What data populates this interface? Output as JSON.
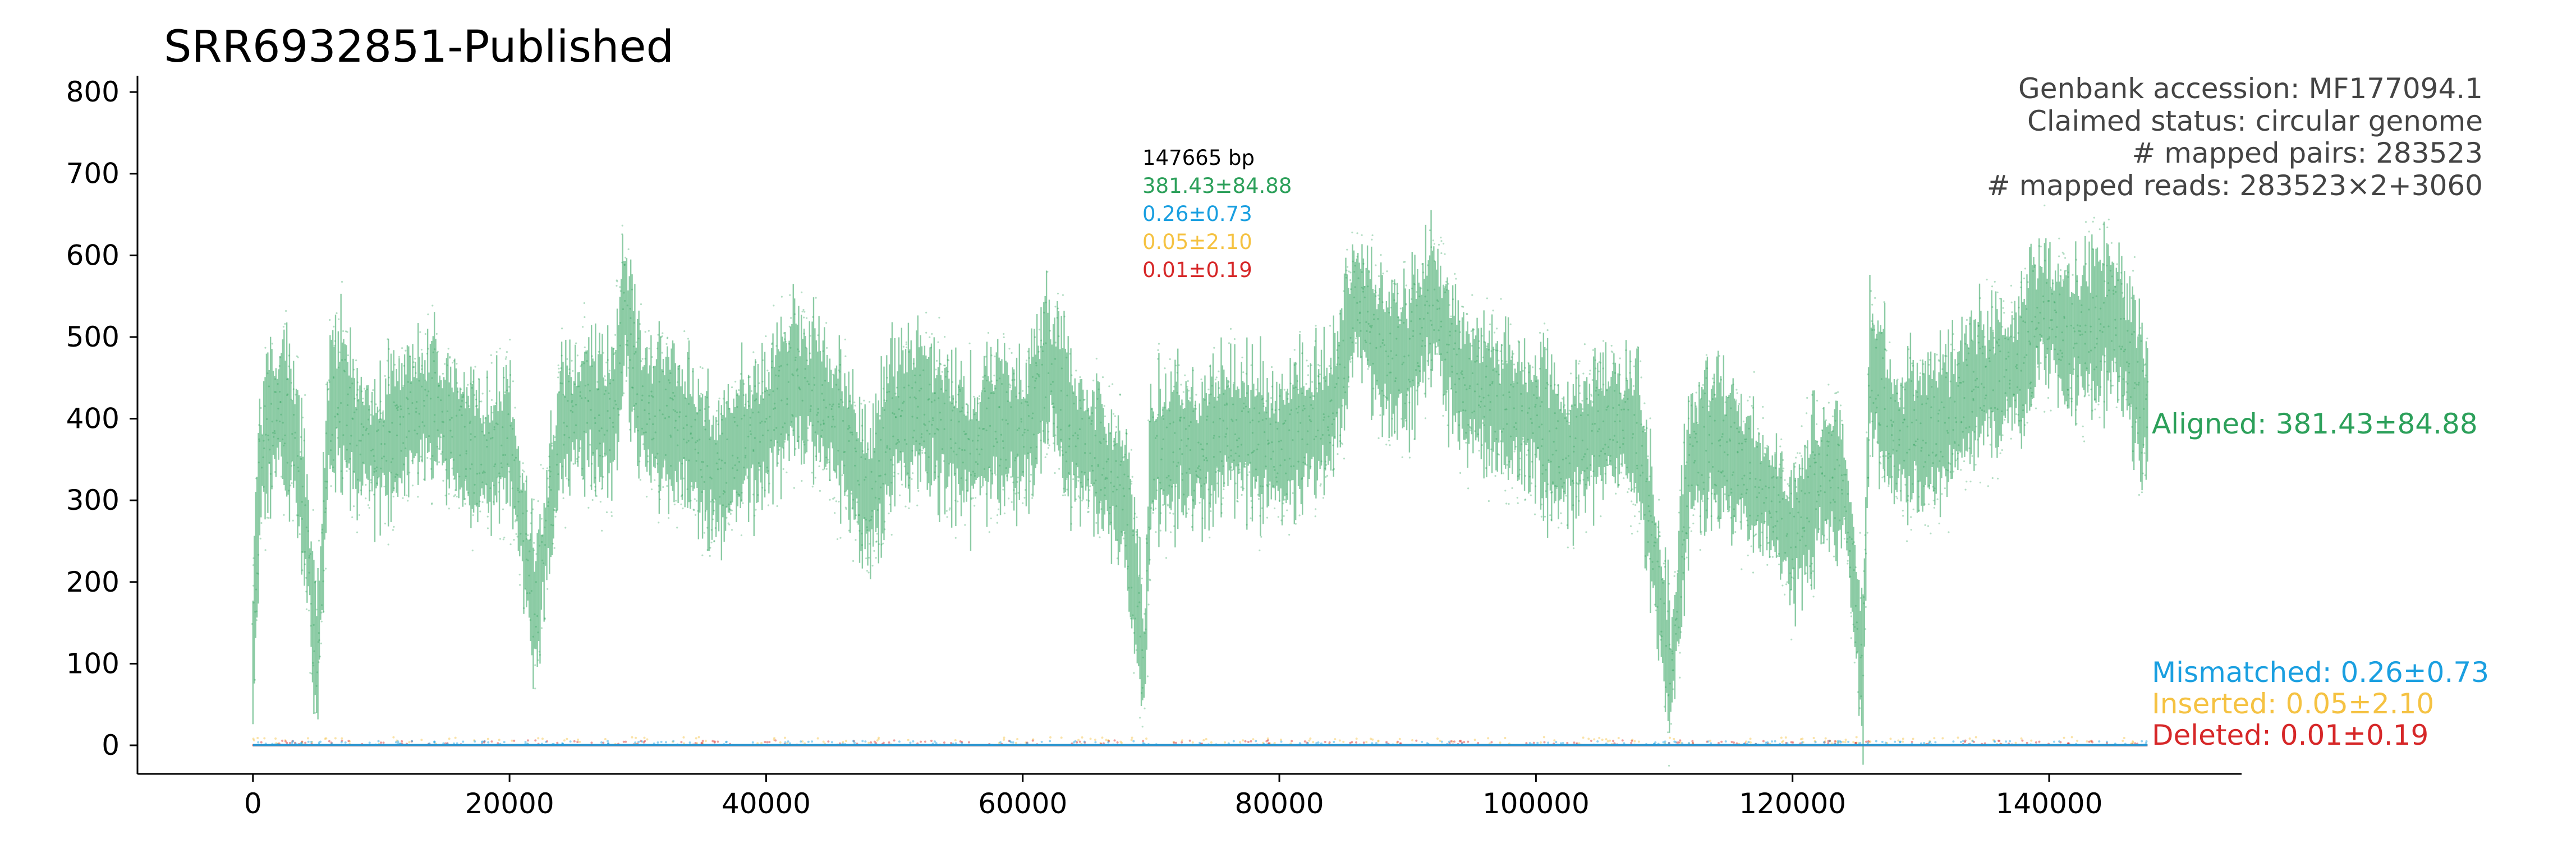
{
  "title": "SRR6932851-Published",
  "info": {
    "line1": "Genbank accession: MF177094.1",
    "line2": "Claimed status: circular genome",
    "line3": "# mapped pairs: 283523",
    "line4": "# mapped reads: 283523×2+3060"
  },
  "stats": {
    "length": "147665 bp",
    "aligned": "381.43±84.88",
    "mismatched": "0.26±0.73",
    "inserted": "0.05±2.10",
    "deleted": "0.01±0.19"
  },
  "labels": {
    "aligned": "Aligned: 381.43±84.88",
    "mismatched": "Mismatched: 0.26±0.73",
    "inserted": "Inserted: 0.05±2.10",
    "deleted": "Deleted: 0.01±0.19"
  },
  "colors": {
    "aligned": "#2ca05a",
    "mismatched": "#1a9fe0",
    "inserted": "#f5c242",
    "deleted": "#d62728",
    "info": "#444444"
  },
  "chart_data": {
    "type": "scatter",
    "title": "SRR6932851-Published",
    "xlabel": "",
    "ylabel": "",
    "xlim": [
      -9000,
      155000
    ],
    "ylim": [
      -35,
      820
    ],
    "xticks": [
      0,
      20000,
      40000,
      60000,
      80000,
      100000,
      120000,
      140000
    ],
    "yticks": [
      0,
      100,
      200,
      300,
      400,
      500,
      600,
      700,
      800
    ],
    "grid": false,
    "genome_length": 147665,
    "series": [
      {
        "name": "Aligned",
        "x": [
          0,
          500,
          1000,
          2000,
          3000,
          4000,
          5000,
          6000,
          7000,
          8000,
          10000,
          12000,
          14000,
          16000,
          18000,
          20000,
          22000,
          24000,
          26000,
          28000,
          29000,
          30000,
          32000,
          34000,
          36000,
          38000,
          40000,
          42000,
          44000,
          46000,
          48000,
          50000,
          52000,
          54000,
          56000,
          58000,
          60000,
          62000,
          64000,
          66000,
          68000,
          69500,
          70000,
          72000,
          74000,
          76000,
          78000,
          80000,
          82000,
          84000,
          86000,
          88000,
          90000,
          92000,
          94000,
          96000,
          98000,
          100000,
          102000,
          104000,
          106000,
          108000,
          110500,
          112000,
          114000,
          116000,
          118000,
          120000,
          122000,
          124000,
          125500,
          126000,
          128000,
          130000,
          132000,
          134000,
          136000,
          138000,
          139500,
          141000,
          143000,
          145000,
          146500,
          147665
        ],
        "values": [
          110,
          320,
          380,
          420,
          390,
          300,
          100,
          420,
          430,
          380,
          360,
          400,
          420,
          380,
          350,
          380,
          160,
          390,
          420,
          390,
          540,
          420,
          400,
          380,
          330,
          370,
          390,
          450,
          430,
          380,
          300,
          400,
          420,
          390,
          360,
          400,
          380,
          470,
          380,
          350,
          300,
          90,
          350,
          370,
          360,
          390,
          380,
          360,
          390,
          400,
          550,
          480,
          470,
          550,
          450,
          430,
          410,
          400,
          360,
          380,
          400,
          380,
          80,
          350,
          380,
          340,
          310,
          250,
          330,
          320,
          90,
          470,
          380,
          380,
          390,
          440,
          450,
          470,
          540,
          500,
          510,
          520,
          470,
          400
        ]
      },
      {
        "name": "Mismatched",
        "x": [
          0,
          147665
        ],
        "values": [
          0.26,
          0.26
        ]
      },
      {
        "name": "Inserted",
        "x": [
          0,
          147665
        ],
        "values": [
          0.05,
          0.05
        ]
      },
      {
        "name": "Deleted",
        "x": [
          0,
          147665
        ],
        "values": [
          0.01,
          0.01
        ]
      }
    ]
  }
}
